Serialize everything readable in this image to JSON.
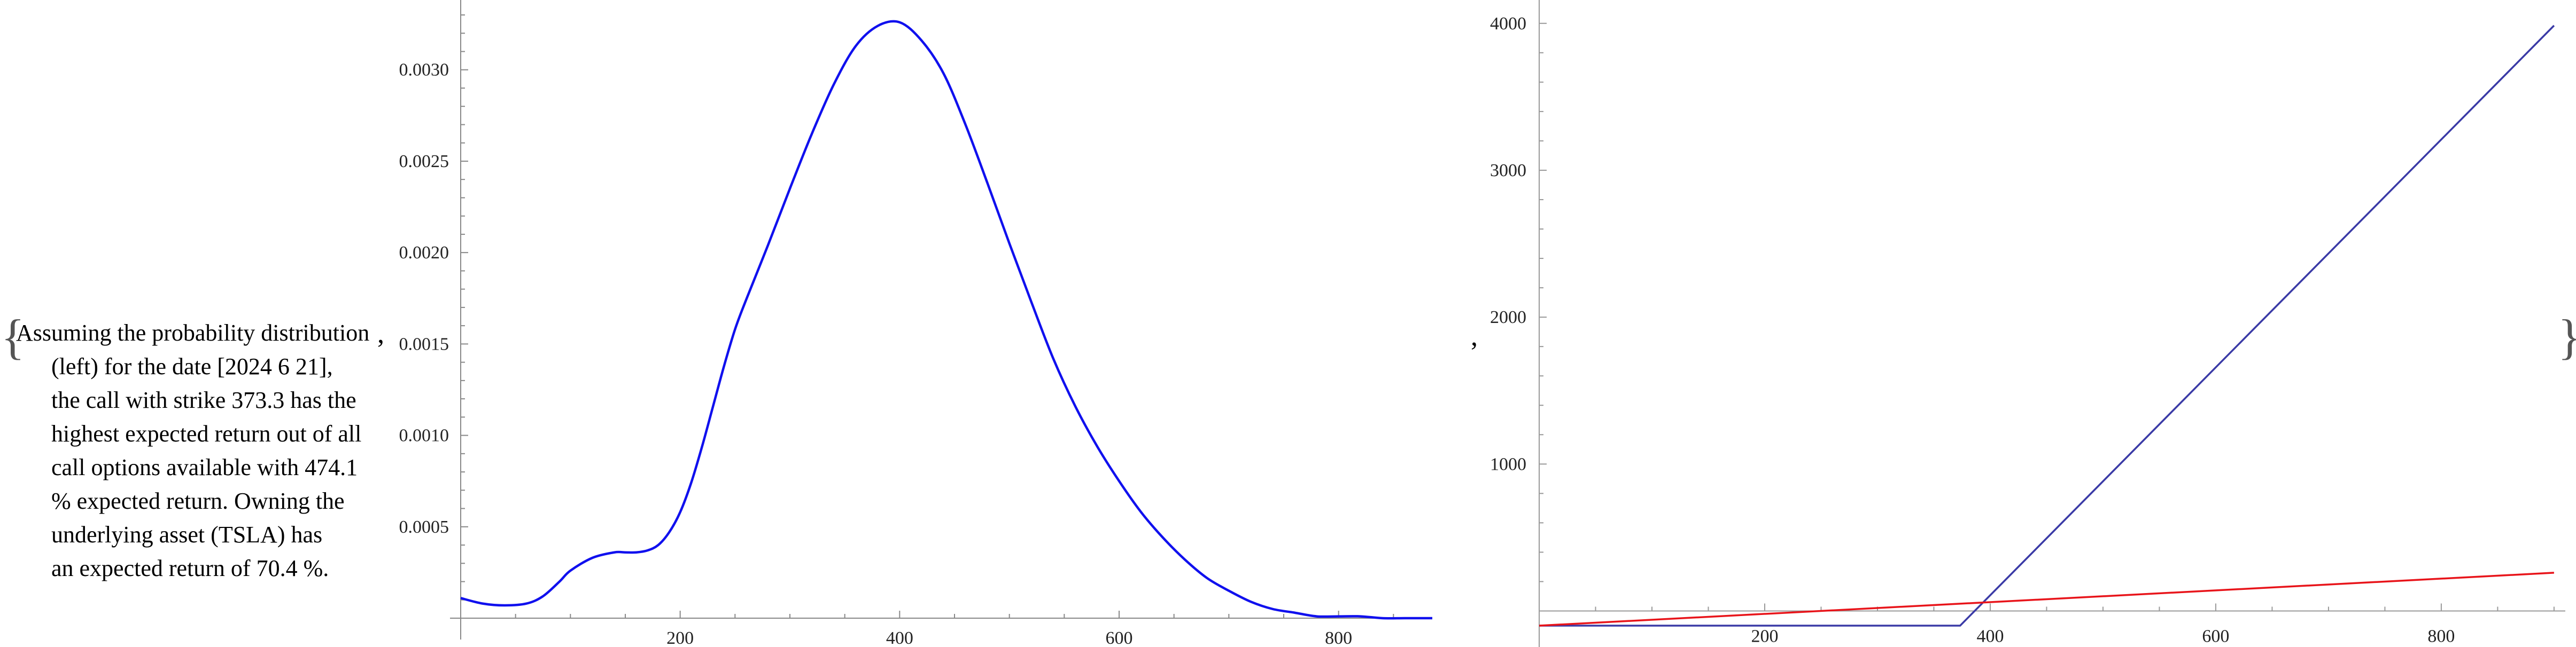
{
  "caption": {
    "open_brace": "{",
    "close_brace": "}",
    "separator": ",",
    "lines": [
      "Assuming the probability distribution",
      "(left) for the date [2024 6 21],",
      "the call with strike 373.3 has the",
      "highest expected return out of all",
      "call options available with 474.1",
      "% expected return. Owning the",
      "underlying asset (TSLA) has",
      "an expected return of 70.4 %."
    ]
  },
  "chart_data": [
    {
      "type": "line",
      "title": "",
      "xlabel": "",
      "ylabel": "",
      "xlim": [
        0,
        900
      ],
      "ylim": [
        0,
        0.0033
      ],
      "x_ticks": [
        "200",
        "400",
        "600",
        "800"
      ],
      "y_ticks": [
        "0.0005",
        "0.0010",
        "0.0015",
        "0.0020",
        "0.0025",
        "0.0030"
      ],
      "grid": false,
      "colors": {
        "series": "#1010ee"
      },
      "series": [
        {
          "x": [
            0,
            20,
            40,
            60,
            75,
            90,
            100,
            120,
            140,
            150,
            160,
            170,
            180,
            190,
            200,
            210,
            220,
            230,
            240,
            250,
            260,
            280,
            300,
            320,
            340,
            360,
            380,
            400,
            420,
            440,
            460,
            480,
            500,
            520,
            540,
            560,
            580,
            600,
            620,
            640,
            660,
            680,
            700,
            720,
            740,
            760,
            780,
            800,
            820,
            840,
            860,
            880,
            900
          ],
          "values": [
            0.00011,
            8e-05,
            7e-05,
            8e-05,
            0.00012,
            0.0002,
            0.00026,
            0.00033,
            0.00036,
            0.00036,
            0.00036,
            0.00037,
            0.0004,
            0.00047,
            0.00058,
            0.00074,
            0.00094,
            0.00116,
            0.00138,
            0.00158,
            0.00174,
            0.00204,
            0.00235,
            0.00265,
            0.00292,
            0.00313,
            0.00324,
            0.00326,
            0.00316,
            0.00298,
            0.0027,
            0.00238,
            0.00205,
            0.00173,
            0.00142,
            0.00116,
            0.00094,
            0.00075,
            0.00058,
            0.00044,
            0.00032,
            0.00022,
            0.00015,
            9e-05,
            5e-05,
            3e-05,
            1e-05,
            1e-05,
            1e-05,
            0.0,
            0.0,
            0.0,
            0.0
          ]
        }
      ]
    },
    {
      "type": "line",
      "title": "",
      "xlabel": "",
      "ylabel": "",
      "xlim": [
        0,
        910
      ],
      "ylim": [
        -100,
        4050
      ],
      "x_ticks": [
        "200",
        "400",
        "600",
        "800"
      ],
      "y_ticks": [
        "1000",
        "2000",
        "3000",
        "4000"
      ],
      "grid": false,
      "colors": {
        "call": "#3a3aa6",
        "underlying": "#e8141a"
      },
      "series": [
        {
          "name": "",
          "color": "#3a3aa6",
          "x": [
            0,
            373.3,
            900
          ],
          "values": [
            -100,
            -100,
            3985
          ]
        },
        {
          "name": "",
          "color": "#e8141a",
          "x": [
            0,
            900
          ],
          "values": [
            -100,
            260
          ]
        }
      ]
    }
  ]
}
